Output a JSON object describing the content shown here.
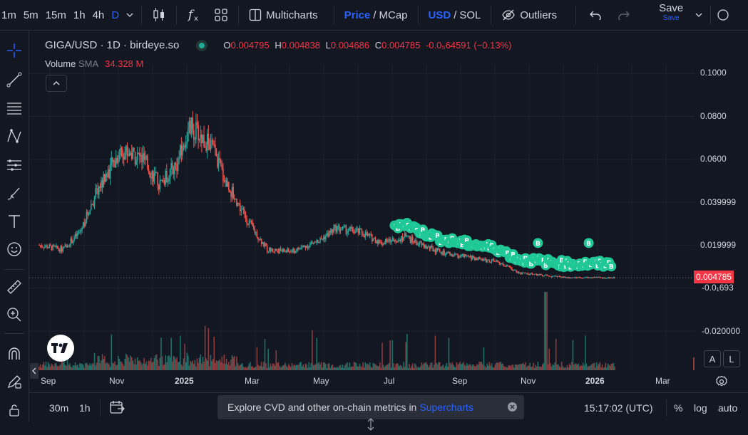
{
  "toolbar": {
    "timeframes": [
      "1m",
      "5m",
      "15m",
      "1h",
      "4h",
      "D"
    ],
    "multicharts": "Multicharts",
    "price": "Price",
    "mcap": "MCap",
    "usd": "USD",
    "sol": "SOL",
    "outliers": "Outliers",
    "save": "Save",
    "save_sub": "Save",
    "slash": "/"
  },
  "legend": {
    "symbol": "GIGA/USD · 1D · birdeye.so",
    "o_label": "O",
    "o": "0.004795",
    "h_label": "H",
    "h": "0.004838",
    "l_label": "L",
    "l": "0.004686",
    "c_label": "C",
    "c": "0.004785",
    "change": "-0.0₅64591 (−0.13%)"
  },
  "volume": {
    "label": "Volume",
    "sma": "SMA",
    "value": "34.328 M"
  },
  "price_axis": {
    "labels": [
      "0.1000",
      "0.0800",
      "0.0600",
      "0.039999",
      "0.019999",
      "0.004785",
      "-0.0₁693",
      "-0.020000"
    ],
    "current": "0.004785"
  },
  "time_axis": {
    "labels": [
      "Sep",
      "Nov",
      "2025",
      "Mar",
      "May",
      "Jul",
      "Sep",
      "Nov",
      "2026",
      "Mar"
    ]
  },
  "bottom": {
    "tf_30m": "30m",
    "tf_1h": "1h",
    "banner_text": "Explore CVD and other on-chain metrics in",
    "banner_link": "Supercharts",
    "time": "15:17:02 (UTC)",
    "percent": "%",
    "log": "log",
    "auto": "auto"
  },
  "scale_buttons": {
    "a": "A",
    "l": "L"
  },
  "marker": {
    "letter": "B"
  },
  "colors": {
    "up": "#26a69a",
    "down": "#ef5350",
    "marker": "#1fc896",
    "accent": "#2962ff"
  },
  "chart_data": {
    "type": "candlestick",
    "symbol": "GIGA/USD",
    "interval": "1D",
    "x_range": [
      "2024-08-20",
      "2026-01-12"
    ],
    "ylim": [
      -0.03,
      0.1
    ],
    "close_approx": [
      {
        "date": "2024-08-20",
        "value": 0.02
      },
      {
        "date": "2024-09-10",
        "value": 0.018
      },
      {
        "date": "2024-09-25",
        "value": 0.026
      },
      {
        "date": "2024-10-10",
        "value": 0.045
      },
      {
        "date": "2024-11-01",
        "value": 0.065
      },
      {
        "date": "2024-11-20",
        "value": 0.06
      },
      {
        "date": "2024-12-05",
        "value": 0.048
      },
      {
        "date": "2024-12-20",
        "value": 0.058
      },
      {
        "date": "2025-01-01",
        "value": 0.075
      },
      {
        "date": "2025-01-20",
        "value": 0.066
      },
      {
        "date": "2025-02-01",
        "value": 0.05
      },
      {
        "date": "2025-02-20",
        "value": 0.032
      },
      {
        "date": "2025-03-10",
        "value": 0.018
      },
      {
        "date": "2025-04-01",
        "value": 0.017
      },
      {
        "date": "2025-04-25",
        "value": 0.022
      },
      {
        "date": "2025-05-10",
        "value": 0.028
      },
      {
        "date": "2025-06-01",
        "value": 0.026
      },
      {
        "date": "2025-06-20",
        "value": 0.021
      },
      {
        "date": "2025-07-10",
        "value": 0.024
      },
      {
        "date": "2025-07-25",
        "value": 0.02
      },
      {
        "date": "2025-08-15",
        "value": 0.016
      },
      {
        "date": "2025-09-10",
        "value": 0.014
      },
      {
        "date": "2025-10-01",
        "value": 0.012
      },
      {
        "date": "2025-10-20",
        "value": 0.007
      },
      {
        "date": "2025-11-10",
        "value": 0.006
      },
      {
        "date": "2025-12-01",
        "value": 0.005
      },
      {
        "date": "2026-01-12",
        "value": 0.004785
      }
    ],
    "volume_spike_date": "2025-11-12",
    "buy_markers_range": [
      "2025-07-01",
      "2026-01-10"
    ],
    "current_price": 0.004785,
    "grid": true
  }
}
